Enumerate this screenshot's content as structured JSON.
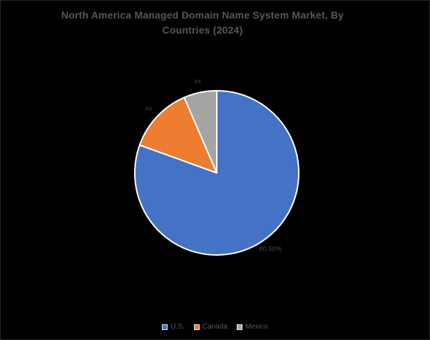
{
  "title": "North America Managed Domain Name System Market, By Countries (2024)",
  "chart_data": {
    "type": "pie",
    "title": "North America Managed Domain Name System Market, By Countries (2024)",
    "categories": [
      "U.S.",
      "Canada",
      "Mexico"
    ],
    "values": [
      80.5,
      13.0,
      6.5
    ],
    "data_labels": [
      "80.50%",
      "xx",
      "xx"
    ],
    "colors": [
      "#4472C4",
      "#ED7D31",
      "#A5A5A5"
    ],
    "start_angle_deg": 0,
    "direction": "clockwise",
    "legend_position": "bottom",
    "slice_border_color": "#FFFFFF",
    "background_color": "#000000",
    "title_color": "#58585C",
    "label_color": "#47474B"
  },
  "legend": {
    "items": [
      {
        "label": "U.S.",
        "color": "#4472C4"
      },
      {
        "label": "Canada",
        "color": "#ED7D31"
      },
      {
        "label": "Mexico",
        "color": "#A5A5A5"
      }
    ]
  }
}
